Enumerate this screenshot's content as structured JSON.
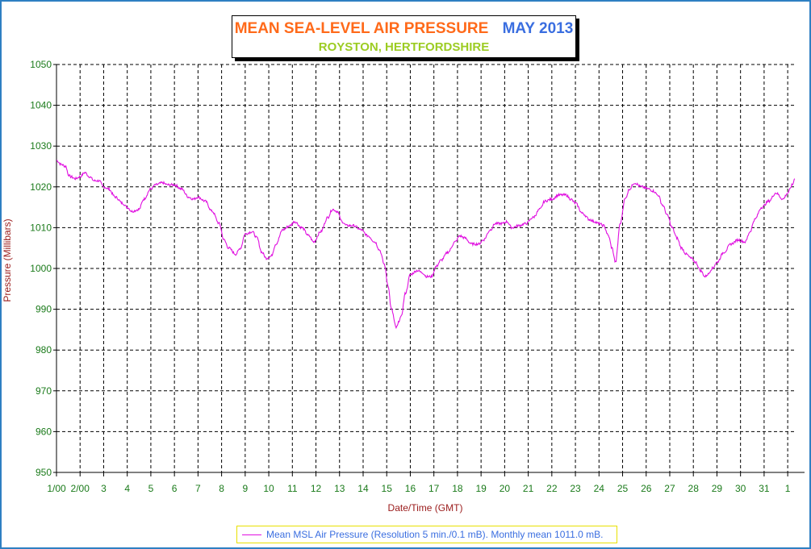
{
  "chart_data": {
    "type": "line",
    "title": "MEAN SEA-LEVEL AIR PRESSURE",
    "title_period": "MAY 2013",
    "subtitle": "ROYSTON, HERTFORDSHIRE",
    "xlabel": "Date/Time (GMT)",
    "ylabel": "Pressure (Millibars)",
    "ylim": [
      950,
      1050
    ],
    "xlim": [
      1,
      32.3
    ],
    "y_ticks": [
      950,
      960,
      970,
      980,
      990,
      1000,
      1010,
      1020,
      1030,
      1040,
      1050
    ],
    "x_tick_labels": [
      "1/00",
      "2/00",
      "3",
      "4",
      "5",
      "6",
      "7",
      "8",
      "9",
      "10",
      "11",
      "12",
      "13",
      "14",
      "15",
      "16",
      "17",
      "18",
      "19",
      "20",
      "21",
      "22",
      "23",
      "24",
      "25",
      "26",
      "27",
      "28",
      "29",
      "30",
      "31",
      "1"
    ],
    "grid": true,
    "legend_position": "bottom",
    "series": [
      {
        "name": "Mean MSL Air Pressure (Resolution 5 min./0.1 mB). Monthly mean 1011.0 mB.",
        "color": "#e010e0",
        "x": [
          1.0,
          1.2,
          1.4,
          1.5,
          1.6,
          1.8,
          2.0,
          2.2,
          2.4,
          2.6,
          2.8,
          3.0,
          3.2,
          3.5,
          3.8,
          4.0,
          4.2,
          4.5,
          4.7,
          5.0,
          5.2,
          5.5,
          5.7,
          6.0,
          6.3,
          6.6,
          6.8,
          7.0,
          7.3,
          7.6,
          7.9,
          8.1,
          8.3,
          8.6,
          8.8,
          9.0,
          9.3,
          9.5,
          9.7,
          9.9,
          10.1,
          10.3,
          10.6,
          10.9,
          11.1,
          11.4,
          11.7,
          11.9,
          12.2,
          12.5,
          12.7,
          12.9,
          13.1,
          13.3,
          13.6,
          13.9,
          14.2,
          14.5,
          14.7,
          14.9,
          15.05,
          15.2,
          15.4,
          15.6,
          15.8,
          16.0,
          16.3,
          16.5,
          16.7,
          16.9,
          17.1,
          17.3,
          17.6,
          17.9,
          18.1,
          18.3,
          18.6,
          18.9,
          19.1,
          19.4,
          19.6,
          19.9,
          20.1,
          20.3,
          20.6,
          20.9,
          21.2,
          21.5,
          21.7,
          22.0,
          22.3,
          22.6,
          22.8,
          23.0,
          23.3,
          23.6,
          23.8,
          24.0,
          24.2,
          24.4,
          24.55,
          24.7,
          24.9,
          25.1,
          25.3,
          25.5,
          25.8,
          26.1,
          26.3,
          26.5,
          26.7,
          26.9,
          27.1,
          27.3,
          27.5,
          27.7,
          27.9,
          28.1,
          28.3,
          28.5,
          28.6,
          28.8,
          29.0,
          29.3,
          29.6,
          29.9,
          30.2,
          30.4,
          30.6,
          30.9,
          31.2,
          31.5,
          31.8,
          32.0,
          32.2,
          32.3
        ],
        "values": [
          1026.5,
          1025.5,
          1025.0,
          1023.0,
          1022.5,
          1022.0,
          1022.5,
          1023.5,
          1022.5,
          1021.5,
          1021.5,
          1020.0,
          1019.5,
          1017.5,
          1016.0,
          1015.0,
          1014.0,
          1014.5,
          1017.0,
          1019.5,
          1020.5,
          1021.0,
          1020.5,
          1020.5,
          1019.5,
          1017.5,
          1017.0,
          1017.5,
          1016.5,
          1014.0,
          1011.0,
          1007.0,
          1005.0,
          1003.5,
          1005.0,
          1008.5,
          1009.0,
          1007.5,
          1004.0,
          1002.5,
          1003.0,
          1006.0,
          1009.5,
          1010.5,
          1011.5,
          1010.0,
          1008.0,
          1006.5,
          1009.0,
          1012.5,
          1014.5,
          1014.0,
          1011.5,
          1010.5,
          1010.5,
          1009.5,
          1008.0,
          1006.5,
          1004.5,
          1001.0,
          996.0,
          990.0,
          985.5,
          988.0,
          994.0,
          998.5,
          999.5,
          999.0,
          998.0,
          998.0,
          1000.5,
          1002.0,
          1004.0,
          1006.5,
          1008.0,
          1007.5,
          1006.0,
          1006.0,
          1007.0,
          1009.5,
          1011.0,
          1011.0,
          1011.5,
          1010.0,
          1010.5,
          1011.0,
          1012.5,
          1014.5,
          1016.5,
          1017.0,
          1018.0,
          1018.0,
          1017.0,
          1016.0,
          1013.5,
          1012.0,
          1011.5,
          1011.0,
          1010.5,
          1008.0,
          1005.0,
          1001.5,
          1011.0,
          1017.0,
          1019.5,
          1021.0,
          1020.0,
          1019.5,
          1019.0,
          1018.0,
          1015.5,
          1013.0,
          1010.0,
          1007.5,
          1005.0,
          1003.5,
          1002.5,
          1001.5,
          999.5,
          998.0,
          998.5,
          1000.0,
          1001.5,
          1004.0,
          1006.0,
          1007.0,
          1006.5,
          1009.0,
          1012.0,
          1015.0,
          1016.5,
          1018.5,
          1017.0,
          1018.5,
          1020.5,
          1022.0
        ]
      }
    ]
  }
}
